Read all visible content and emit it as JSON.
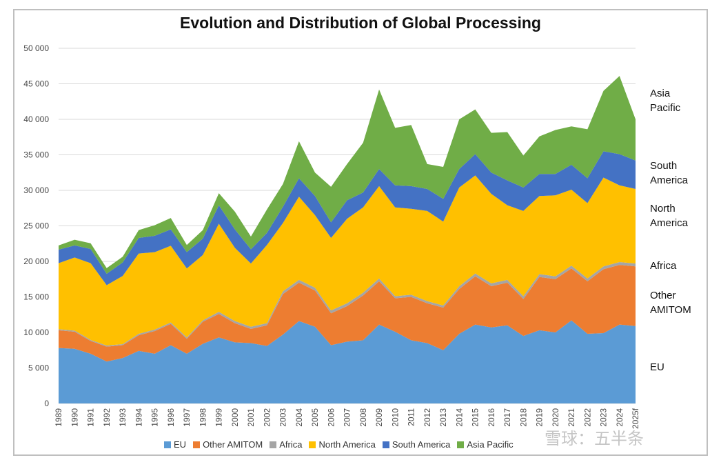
{
  "chart_data": {
    "type": "area",
    "stacked": true,
    "title": "Evolution and Distribution of Global Processing",
    "xlabel": "",
    "ylabel": "",
    "ylim": [
      0,
      50000
    ],
    "yticks": [
      "0",
      "5 000",
      "10 000",
      "15 000",
      "20 000",
      "25 000",
      "30 000",
      "35 000",
      "40 000",
      "45 000",
      "50 000"
    ],
    "categories": [
      "1989",
      "1990",
      "1991",
      "1992",
      "1993",
      "1994",
      "1995",
      "1996",
      "1997",
      "1998",
      "1999",
      "2000",
      "2001",
      "2002",
      "2003",
      "2004",
      "2005",
      "2006",
      "2007",
      "2008",
      "2009",
      "2010",
      "2011",
      "2012",
      "2013",
      "2014",
      "2015",
      "2016",
      "2017",
      "2018",
      "2019",
      "2020",
      "2021",
      "2022",
      "2023",
      "2024",
      "2025f"
    ],
    "series": [
      {
        "name": "EU",
        "color": "#5b9bd5",
        "values": [
          7800,
          7700,
          7000,
          5900,
          6400,
          7400,
          7000,
          8200,
          7000,
          8400,
          9300,
          8600,
          8500,
          8100,
          9700,
          11600,
          10800,
          8200,
          8700,
          8900,
          11100,
          10100,
          8900,
          8500,
          7500,
          9800,
          11100,
          10700,
          11000,
          9500,
          10300,
          10000,
          11700,
          9800,
          9900,
          11100,
          10900
        ]
      },
      {
        "name": "Other AMITOM",
        "color": "#ed7d31",
        "values": [
          2500,
          2400,
          1800,
          2100,
          1800,
          2200,
          3200,
          3000,
          2100,
          3100,
          3300,
          2700,
          2000,
          2900,
          5700,
          5400,
          5100,
          4500,
          5000,
          6300,
          6100,
          4700,
          6100,
          5600,
          6000,
          6300,
          6800,
          5800,
          6000,
          5200,
          7500,
          7500,
          7300,
          7400,
          9000,
          8400,
          8400
        ]
      },
      {
        "name": "Africa",
        "color": "#a5a5a5",
        "values": [
          150,
          150,
          150,
          150,
          150,
          200,
          200,
          200,
          200,
          200,
          300,
          300,
          300,
          300,
          400,
          400,
          400,
          400,
          400,
          400,
          400,
          300,
          300,
          300,
          300,
          400,
          400,
          400,
          400,
          400,
          400,
          400,
          400,
          400,
          400,
          400,
          400
        ]
      },
      {
        "name": "North America",
        "color": "#ffc000",
        "values": [
          9300,
          10300,
          10800,
          8500,
          9600,
          11300,
          10900,
          10800,
          9700,
          9200,
          12400,
          10300,
          8900,
          11000,
          9600,
          11700,
          10200,
          10200,
          11900,
          12000,
          13000,
          12500,
          12100,
          12700,
          11800,
          13900,
          13800,
          12600,
          10500,
          12000,
          11000,
          11400,
          10700,
          10600,
          12500,
          10800,
          10500
        ]
      },
      {
        "name": "South America",
        "color": "#4472c4",
        "values": [
          1900,
          1700,
          2000,
          1600,
          1900,
          2200,
          2300,
          2300,
          2300,
          2300,
          2600,
          2600,
          2000,
          1700,
          2300,
          2600,
          2700,
          2200,
          2600,
          2100,
          2400,
          3100,
          3200,
          3100,
          3200,
          2600,
          3000,
          3000,
          3500,
          3300,
          3100,
          3000,
          3500,
          3500,
          3700,
          4400,
          4000
        ]
      },
      {
        "name": "Asia Pacific",
        "color": "#70ad47",
        "values": [
          600,
          800,
          800,
          800,
          800,
          1100,
          1500,
          1600,
          1000,
          1200,
          1700,
          2500,
          1800,
          3300,
          3200,
          5200,
          3300,
          5000,
          5100,
          7000,
          11200,
          8100,
          8600,
          3500,
          4500,
          7000,
          6300,
          5600,
          6800,
          4500,
          5300,
          6200,
          5400,
          6900,
          8500,
          11000,
          5800
        ]
      }
    ]
  },
  "side_labels": {
    "asia_pacific": [
      "Asia",
      "Pacific"
    ],
    "south_america": [
      "South",
      "America"
    ],
    "north_america": [
      "North",
      "America"
    ],
    "africa": [
      "Africa"
    ],
    "other_amitom": [
      "Other",
      "AMITOM"
    ],
    "eu": [
      "EU"
    ]
  },
  "watermark": "雪球：五半条"
}
